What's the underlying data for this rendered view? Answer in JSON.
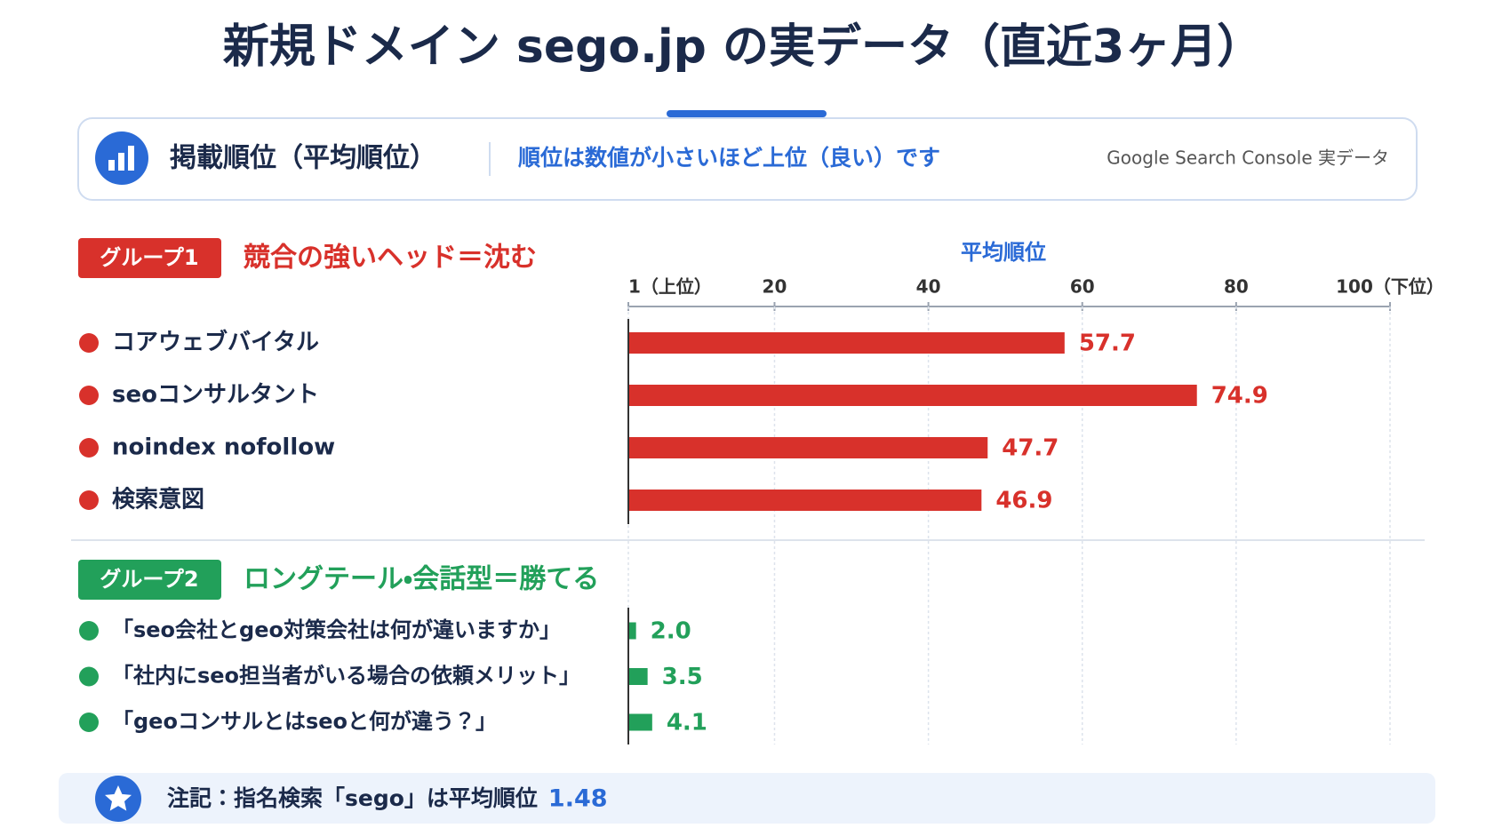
{
  "header": {
    "title": "新規ドメイン sego.jp の実データ（直近3ヶ月）"
  },
  "panel": {
    "title": "掲載順位（平均順位）",
    "description": "順位は数値が小さいほど上位（良い）です",
    "source": "Google Search Console 実データ"
  },
  "chart_data": {
    "type": "bar",
    "orientation": "horizontal",
    "x_label": "平均順位",
    "xlim": [
      1,
      100
    ],
    "xticks": [
      {
        "value": 1,
        "label": "1（上位）"
      },
      20,
      40,
      60,
      80,
      {
        "value": 100,
        "label": "100（下位）"
      }
    ],
    "grid": true,
    "groups": [
      {
        "label": "グループ1",
        "heading": "競合の強いヘッド＝沈む",
        "color": "#d8312b",
        "categories": [
          "コアウェブバイタル",
          "seoコンサルタント",
          "noindex nofollow",
          "検索意図"
        ],
        "values": [
          57.7,
          74.9,
          47.7,
          46.9
        ]
      },
      {
        "label": "グループ2",
        "heading": "ロングテール・会話型＝勝てる",
        "color": "#22a05a",
        "categories": [
          "「seo会社とgeo対策会社は何が違いますか」",
          "「社内にseo担当者がいる場合の依頼メリット」",
          "「geoコンサルとはseoと何が違う？」"
        ],
        "values": [
          2.0,
          3.5,
          4.1
        ],
        "value_labels": [
          "2.0",
          "3.5",
          "4.1"
        ]
      }
    ]
  },
  "note": {
    "text": "注記：指名検索「sego」は平均順位",
    "value": 1.48
  }
}
